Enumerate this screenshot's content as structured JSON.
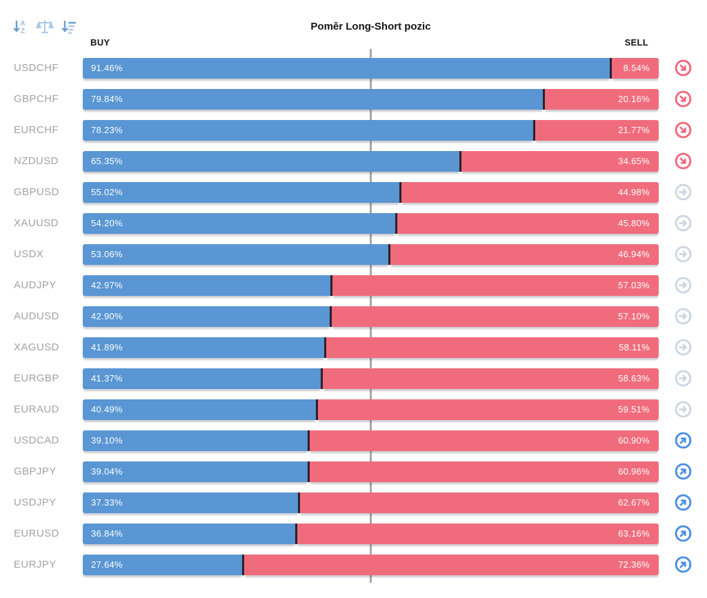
{
  "title": "Poměr Long-Short pozic",
  "columns": {
    "buy": "BUY",
    "sell": "SELL"
  },
  "toolbar": {
    "icons": [
      "sort-alpha-descending-icon",
      "balance-scale-icon",
      "sort-amount-descending-icon"
    ]
  },
  "colors": {
    "buy_bar": "#5996d3",
    "sell_bar": "#f06c7c",
    "bar_divider": "#2d2129",
    "center_line": "#a7a7a7",
    "pair_label": "#a2a2a2",
    "trend_down": "#f2677b",
    "trend_neutral": "#ccd6e2",
    "trend_up": "#4a8ee2",
    "toolbar_icon_dark": "#6b9cd3",
    "toolbar_icon_light": "#aac8e5"
  },
  "rows": [
    {
      "pair": "USDCHF",
      "buy": 91.46,
      "sell": 8.54,
      "buy_label": "91.46%",
      "sell_label": "8.54%",
      "trend": "down"
    },
    {
      "pair": "GBPCHF",
      "buy": 79.84,
      "sell": 20.16,
      "buy_label": "79.84%",
      "sell_label": "20.16%",
      "trend": "down"
    },
    {
      "pair": "EURCHF",
      "buy": 78.23,
      "sell": 21.77,
      "buy_label": "78.23%",
      "sell_label": "21.77%",
      "trend": "down"
    },
    {
      "pair": "NZDUSD",
      "buy": 65.35,
      "sell": 34.65,
      "buy_label": "65.35%",
      "sell_label": "34.65%",
      "trend": "down"
    },
    {
      "pair": "GBPUSD",
      "buy": 55.02,
      "sell": 44.98,
      "buy_label": "55.02%",
      "sell_label": "44.98%",
      "trend": "neutral"
    },
    {
      "pair": "XAUUSD",
      "buy": 54.2,
      "sell": 45.8,
      "buy_label": "54.20%",
      "sell_label": "45.80%",
      "trend": "neutral"
    },
    {
      "pair": "USDX",
      "buy": 53.06,
      "sell": 46.94,
      "buy_label": "53.06%",
      "sell_label": "46.94%",
      "trend": "neutral"
    },
    {
      "pair": "AUDJPY",
      "buy": 42.97,
      "sell": 57.03,
      "buy_label": "42.97%",
      "sell_label": "57.03%",
      "trend": "neutral"
    },
    {
      "pair": "AUDUSD",
      "buy": 42.9,
      "sell": 57.1,
      "buy_label": "42.90%",
      "sell_label": "57.10%",
      "trend": "neutral"
    },
    {
      "pair": "XAGUSD",
      "buy": 41.89,
      "sell": 58.11,
      "buy_label": "41.89%",
      "sell_label": "58.11%",
      "trend": "neutral"
    },
    {
      "pair": "EURGBP",
      "buy": 41.37,
      "sell": 58.63,
      "buy_label": "41.37%",
      "sell_label": "58.63%",
      "trend": "neutral"
    },
    {
      "pair": "EURAUD",
      "buy": 40.49,
      "sell": 59.51,
      "buy_label": "40.49%",
      "sell_label": "59.51%",
      "trend": "neutral"
    },
    {
      "pair": "USDCAD",
      "buy": 39.1,
      "sell": 60.9,
      "buy_label": "39.10%",
      "sell_label": "60.90%",
      "trend": "up"
    },
    {
      "pair": "GBPJPY",
      "buy": 39.04,
      "sell": 60.96,
      "buy_label": "39.04%",
      "sell_label": "60.96%",
      "trend": "up"
    },
    {
      "pair": "USDJPY",
      "buy": 37.33,
      "sell": 62.67,
      "buy_label": "37.33%",
      "sell_label": "62.67%",
      "trend": "up"
    },
    {
      "pair": "EURUSD",
      "buy": 36.84,
      "sell": 63.16,
      "buy_label": "36.84%",
      "sell_label": "63.16%",
      "trend": "up"
    },
    {
      "pair": "EURJPY",
      "buy": 27.64,
      "sell": 72.36,
      "buy_label": "27.64%",
      "sell_label": "72.36%",
      "trend": "up"
    }
  ],
  "chart_data": {
    "type": "bar",
    "subtype": "stacked-horizontal",
    "title": "Poměr Long-Short pozic",
    "categories": [
      "USDCHF",
      "GBPCHF",
      "EURCHF",
      "NZDUSD",
      "GBPUSD",
      "XAUUSD",
      "USDX",
      "AUDJPY",
      "AUDUSD",
      "XAGUSD",
      "EURGBP",
      "EURAUD",
      "USDCAD",
      "GBPJPY",
      "USDJPY",
      "EURUSD",
      "EURJPY"
    ],
    "series": [
      {
        "name": "BUY",
        "color": "#5996d3",
        "values": [
          91.46,
          79.84,
          78.23,
          65.35,
          55.02,
          54.2,
          53.06,
          42.97,
          42.9,
          41.89,
          41.37,
          40.49,
          39.1,
          39.04,
          37.33,
          36.84,
          27.64
        ]
      },
      {
        "name": "SELL",
        "color": "#f06c7c",
        "values": [
          8.54,
          20.16,
          21.77,
          34.65,
          44.98,
          45.8,
          46.94,
          57.03,
          57.1,
          58.11,
          58.63,
          59.51,
          60.9,
          60.96,
          62.67,
          63.16,
          72.36
        ]
      }
    ],
    "trend_indicators": [
      "down",
      "down",
      "down",
      "down",
      "neutral",
      "neutral",
      "neutral",
      "neutral",
      "neutral",
      "neutral",
      "neutral",
      "neutral",
      "up",
      "up",
      "up",
      "up",
      "up"
    ],
    "xlim": [
      0,
      100
    ],
    "reference_line_pct": 50,
    "grid": false,
    "legend_position": "top (BUY left, SELL right)"
  }
}
